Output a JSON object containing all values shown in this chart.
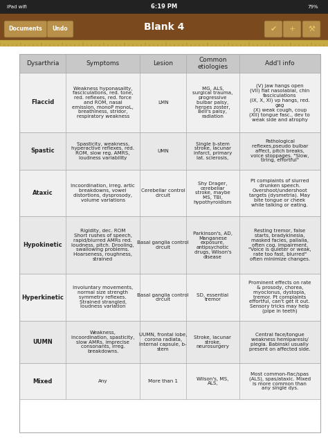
{
  "title": "Blank 4",
  "headers": [
    "Dysarthria",
    "Symptoms",
    "Lesion",
    "Common\netiologies",
    "Add'l info"
  ],
  "rows": [
    {
      "type": "Flaccid",
      "symptoms": "Weakness hyponasality,\nfasciculations, red. tone,\nred. reflexes, red. force\nand ROM, nasal\nemission, monoP monoL,\nbreathiness, stridor,\nrespiratory weakness",
      "lesion": "LMN",
      "etiologies": "MG, ALS,\nsurgical trauma,\nprogressive\nbulbar palsy,\nherpes zoster,\nBell's palsy,\nradiation",
      "addl": "(V) jaw hangs open\n(VII) flat nasolabial, chin\nfasciculations\n(IX, X, XI) vp hangs, red.\ngag\n(X) weak cough, coup\n(XII) tongue fasc., dev to\nweak side and atrophy"
    },
    {
      "type": "Spastic",
      "symptoms": "Spasticity, weakness,\nhyperactive reflexes, red.\nROM, slow reg. AMRS,\nloudness variability",
      "lesion": "UMN",
      "etiologies": "Single b-stem\nstroke, lacunar\ninfarct, primary\nlat. sclerosis,",
      "addl": "Pathological\nreflexes,pseudo bulbar\naffect, pitch breaks,\nvoice stoppages. \"Slow,\ntiring, effortful\""
    },
    {
      "type": "Ataxic",
      "symptoms": "Incoordination, irreg. artic\nbreakdowns, vowel\ndistortions, dysprosody,\nvolume variations",
      "lesion": "Cerebellar control\ncircuit",
      "etiologies": "Shy Drager,\ncerebellar\nstroke, maybe\nMS, TBI,\nhypothyroidism",
      "addl": "Pt complaints of slurred\ndrunken speech.\nOvershoot/undershoot\ntargets (dysmetria). May\nbite tongue or cheek\nwhile talking or eating."
    },
    {
      "type": "Hypokinetic",
      "symptoms": "Rigidity, dec. ROM\nShort rushes of speech,\nrapid/blurred AMRs red.\nloudness, pitch. Drooling,\nswallowing problems.\nHoarseness, roughness,\nstrained",
      "lesion": "Basal ganglia control\ncircuit",
      "etiologies": "Parkinson's, AD,\nManganese\nexposure,\nantipsychotic\ndrugs, Wilson's\ndisease",
      "addl": "Resting tremor, false\nstarts, bradykinesia,\nmasked facies, pallalia,\noften cog. impairment.\n\"Voice is quieter or weak,\nrate too fast, blurred\"\noften minimize changes."
    },
    {
      "type": "Hyperkinetic",
      "symptoms": "Involuntary movements,\nnormal size strength\nsymmetry reflexes.\nStrained strangled,\nloudness variation",
      "lesion": "Basal ganglia control\ncircuit",
      "etiologies": "SD, essential\ntremor",
      "addl": "Prominent effects on rate\n& prosody, chorea,\nmyoclonus, dystopia,\ntremor. Pt complaints\neffortful, can't get it out.\nSensory tricks may help\n(pipe in teeth)"
    },
    {
      "type": "UUMN",
      "symptoms": "Weakness,\nincoordination, spasticity,\nslow AMRs, imprecise\nconsonants, irreg.\nbreakdowns.",
      "lesion": "UUMN, frontal lobe,\ncorona radiata,\ninternal capsule, b-\nstem",
      "etiologies": "Stroke, lacunar\nstroke,\nneurosurgery",
      "addl": "Central face/tongue\nweakness hemiparesis/\nplegia. Babinski usually\npresent on affected side."
    },
    {
      "type": "Mixed",
      "symptoms": "Any",
      "lesion": "More than 1",
      "etiologies": "Wilson's, MS,\nALS,",
      "addl": "Most common-flac/spas\n(ALS), spas/ataxic. Mixed\nis more common than\nany single dys."
    }
  ],
  "header_bg": "#c8c8c8",
  "row_bg_odd": "#f0f0f0",
  "row_bg_even": "#e8e8e8",
  "border_color": "#aaaaaa",
  "text_color": "#222222",
  "header_font_size": 6.5,
  "cell_font_size": 5.1,
  "type_font_size": 6.0,
  "bg_color": "#ffffff",
  "toolbar_color": "#7a4a1e",
  "status_bar_color": "#222222",
  "status_text": "6:19 PM",
  "ipad_text": "iPad",
  "battery_text": "79%",
  "toolbar_title": "Blank 4",
  "btn_docs": "Documents",
  "btn_undo": "Undo",
  "ruler_color": "#c8aa44",
  "btn_color": "#b8904a",
  "btn_edge": "#806030"
}
